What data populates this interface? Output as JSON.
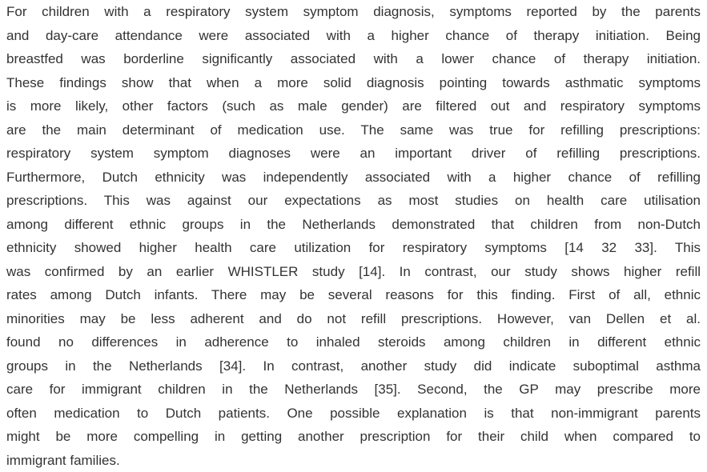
{
  "paragraph": {
    "lines": [
      "For children with a respiratory system symptom diagnosis, symptoms reported by the parents",
      "and day-care attendance were associated with a higher chance of therapy initiation. Being",
      "breastfed was borderline significantly associated with a lower chance of therapy initiation.",
      "These findings show that when a more solid diagnosis pointing towards asthmatic symptoms",
      "is more likely, other factors (such as male gender) are filtered out and respiratory symptoms",
      "are the main determinant of medication use. The same was true for refilling prescriptions:",
      "respiratory system symptom diagnoses were an important driver of refilling prescriptions.",
      "Furthermore, Dutch ethnicity was independently associated with a higher chance of refilling",
      "prescriptions. This was against our expectations as most studies on health care utilisation",
      "among different ethnic groups in the Netherlands demonstrated that children from non-Dutch",
      "ethnicity showed higher health care utilization for respiratory symptoms [14 32 33]. This",
      "was confirmed by an earlier WHISTLER study [14]. In contrast, our study shows higher refill",
      "rates among Dutch infants. There may be several reasons for this finding. First of all, ethnic",
      "minorities may be less adherent and do not refill prescriptions. However, van Dellen et al.",
      "found no differences in adherence to inhaled steroids among children in different ethnic",
      "groups in the Netherlands [34]. In contrast, another study did indicate suboptimal asthma",
      "care for immigrant children in the Netherlands [35]. Second, the GP may prescribe more",
      "often medication to Dutch patients. One possible explanation is that non-immigrant parents",
      "might be more compelling in getting another prescription for their child when compared to",
      "immigrant families."
    ]
  }
}
